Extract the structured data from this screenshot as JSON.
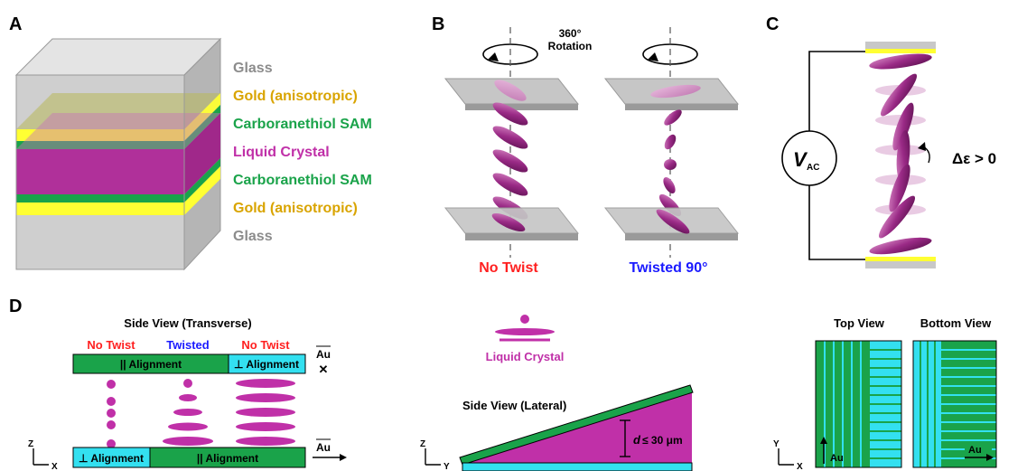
{
  "panels": {
    "a": {
      "letter": "A",
      "layers": [
        "Glass",
        "Gold (anisotropic)",
        "Carboranethiol SAM",
        "Liquid Crystal",
        "Carboranethiol SAM",
        "Gold (anisotropic)",
        "Glass"
      ]
    },
    "b": {
      "letter": "B",
      "rotation_line1": "360°",
      "rotation_line2": "Rotation",
      "left_caption": "No Twist",
      "right_caption": "Twisted 90°"
    },
    "c": {
      "letter": "C",
      "voltage_main": "V",
      "voltage_sub": "AC",
      "dielectric": "Δε > 0"
    },
    "d": {
      "letter": "D",
      "side_view_transverse": "Side View (Transverse)",
      "col_no_twist_left": "No Twist",
      "col_twisted": "Twisted",
      "col_no_twist_right": "No Twist",
      "top_parallel": "|| Alignment",
      "top_perp": "⊥ Alignment",
      "bottom_perp": "⊥ Alignment",
      "bottom_parallel": "|| Alignment",
      "au_label": "Au",
      "cross_mark": "✕",
      "axis_z": "Z",
      "axis_x": "X",
      "axis_y": "Y",
      "liquid_crystal_label": "Liquid Crystal",
      "side_view_lateral": "Side View (Lateral)",
      "thickness_d": "d",
      "thickness_rest": "≤ 30 μm",
      "top_view": "Top View",
      "bottom_view": "Bottom View"
    }
  },
  "colors": {
    "glass": "#c8c8c8",
    "gold": "#ffff33",
    "sam": "#1aa34a",
    "lc": "#b0309a",
    "cyan": "#33e0f0",
    "red": "#ff2020",
    "blue": "#1a1aff",
    "gold_text": "#d9a400"
  }
}
